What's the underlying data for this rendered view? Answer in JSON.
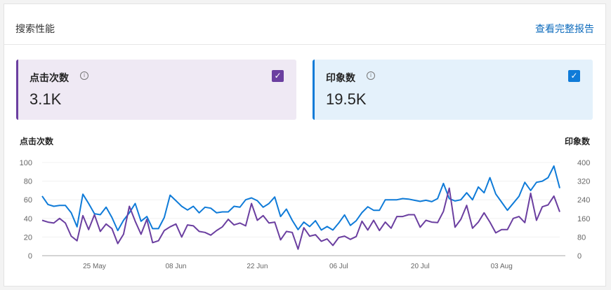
{
  "header": {
    "title": "搜索性能",
    "report_link": "查看完整报告"
  },
  "cards": [
    {
      "label": "点击次数",
      "value": "3.1K",
      "checked": true,
      "color": "#6b3fa0",
      "icon": "info-icon"
    },
    {
      "label": "印象数",
      "value": "19.5K",
      "checked": true,
      "color": "#0f7bd8",
      "icon": "info-icon"
    }
  ],
  "chart_data": {
    "type": "line",
    "left_axis_label": "点击次数",
    "right_axis_label": "印象数",
    "left_ylim": [
      0,
      100
    ],
    "right_ylim": [
      0,
      400
    ],
    "left_ticks": [
      "0",
      "20",
      "40",
      "60",
      "80",
      "100"
    ],
    "right_ticks": [
      "0",
      "80",
      "160",
      "240",
      "320",
      "400"
    ],
    "xticks": [
      {
        "label": "25 May",
        "index": 9
      },
      {
        "label": "08 Jun",
        "index": 23
      },
      {
        "label": "22 Jun",
        "index": 37
      },
      {
        "label": "06 Jul",
        "index": 51
      },
      {
        "label": "20 Jul",
        "index": 65
      },
      {
        "label": "03 Aug",
        "index": 79
      }
    ],
    "grid": true,
    "series": [
      {
        "name": "点击次数",
        "axis": "left",
        "color": "#6b3fa0",
        "values": [
          38,
          36,
          35,
          40,
          35,
          21,
          16,
          43,
          28,
          44,
          26,
          34,
          29,
          13,
          23,
          53,
          37,
          23,
          39,
          14,
          16,
          27,
          31,
          34,
          20,
          33,
          32,
          26,
          25,
          22,
          27,
          31,
          39,
          33,
          35,
          32,
          56,
          38,
          43,
          35,
          36,
          17,
          26,
          25,
          7,
          30,
          21,
          22.5,
          15.5,
          18,
          11,
          19.5,
          21,
          17.5,
          20.5,
          37,
          27.5,
          38,
          27,
          36,
          29.5,
          42,
          42,
          44,
          44,
          30.5,
          38,
          36,
          35.5,
          47.5,
          72.5,
          30.5,
          39,
          54,
          29.5,
          36,
          46,
          36,
          24.5,
          28,
          28,
          40,
          42,
          35.5,
          67,
          38,
          52.5,
          54.5,
          64,
          47
        ]
      },
      {
        "name": "印象数",
        "axis": "right",
        "color": "#0f7bd8",
        "values": [
          256,
          220,
          212,
          216,
          216,
          184,
          124,
          264,
          224,
          180,
          176,
          208,
          164,
          108,
          152,
          184,
          224,
          148,
          168,
          116,
          116,
          164,
          260,
          236,
          212,
          196,
          212,
          184,
          208,
          204,
          184,
          188,
          188,
          212,
          208,
          240,
          248,
          236,
          208,
          224,
          252,
          168,
          200,
          152,
          112,
          144,
          125,
          150,
          110,
          125,
          110,
          140,
          175,
          130,
          150,
          185,
          210,
          195,
          195,
          240,
          240,
          240,
          245,
          243,
          238,
          233,
          238,
          232,
          245,
          310,
          245,
          235,
          240,
          270,
          240,
          295,
          270,
          335,
          265,
          230,
          195,
          225,
          255,
          315,
          280,
          315,
          320,
          335,
          385,
          290
        ]
      }
    ]
  }
}
